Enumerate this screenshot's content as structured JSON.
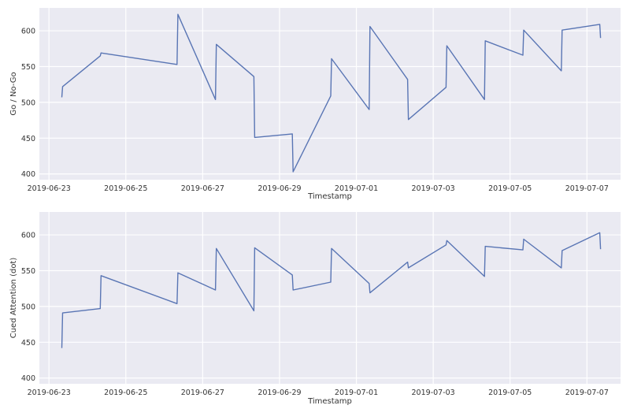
{
  "chart_data": [
    {
      "type": "line",
      "xlabel": "Timestamp",
      "ylabel": "Go / No-Go",
      "ylim": [
        392,
        632
      ],
      "xlim": [
        "2019-06-22T18:00",
        "2019-07-07T21:00"
      ],
      "yticks": [
        400,
        450,
        500,
        550,
        600
      ],
      "xticks": [
        "2019-06-23",
        "2019-06-25",
        "2019-06-27",
        "2019-06-29",
        "2019-07-01",
        "2019-07-03",
        "2019-07-05",
        "2019-07-07"
      ],
      "grid": true,
      "line_color": "#5975b4",
      "series": [
        {
          "x": [
            "2019-06-23T08:00",
            "2019-06-23T08:30",
            "2019-06-24T08:00",
            "2019-06-24T08:30",
            "2019-06-26T08:00",
            "2019-06-26T08:30",
            "2019-06-27T08:00",
            "2019-06-27T08:30",
            "2019-06-28T08:00",
            "2019-06-28T08:30",
            "2019-06-29T08:00",
            "2019-06-29T08:30",
            "2019-06-30T08:00",
            "2019-06-30T08:30",
            "2019-07-01T08:00",
            "2019-07-01T08:30",
            "2019-07-02T08:00",
            "2019-07-02T08:30",
            "2019-07-03T08:00",
            "2019-07-03T08:30",
            "2019-07-04T08:00",
            "2019-07-04T08:30",
            "2019-07-05T08:00",
            "2019-07-05T08:30",
            "2019-07-06T08:00",
            "2019-07-06T08:30",
            "2019-07-07T08:00",
            "2019-07-07T08:30"
          ],
          "values": [
            507,
            522,
            565,
            569,
            553,
            623,
            504,
            581,
            536,
            451,
            456,
            403,
            509,
            561,
            490,
            606,
            532,
            476,
            521,
            579,
            504,
            586,
            566,
            601,
            544,
            601,
            609,
            590
          ]
        }
      ]
    },
    {
      "type": "line",
      "xlabel": "Timestamp",
      "ylabel": "Cued Attention (dot)",
      "ylim": [
        392,
        632
      ],
      "xlim": [
        "2019-06-22T18:00",
        "2019-07-07T21:00"
      ],
      "yticks": [
        400,
        450,
        500,
        550,
        600
      ],
      "xticks": [
        "2019-06-23",
        "2019-06-25",
        "2019-06-27",
        "2019-06-29",
        "2019-07-01",
        "2019-07-03",
        "2019-07-05",
        "2019-07-07"
      ],
      "grid": true,
      "line_color": "#5975b4",
      "series": [
        {
          "x": [
            "2019-06-23T08:00",
            "2019-06-23T08:30",
            "2019-06-24T08:00",
            "2019-06-24T08:30",
            "2019-06-26T08:00",
            "2019-06-26T08:30",
            "2019-06-27T08:00",
            "2019-06-27T08:30",
            "2019-06-28T08:00",
            "2019-06-28T08:30",
            "2019-06-29T08:00",
            "2019-06-29T08:30",
            "2019-06-30T08:00",
            "2019-06-30T08:30",
            "2019-07-01T08:00",
            "2019-07-01T08:30",
            "2019-07-02T08:00",
            "2019-07-02T08:30",
            "2019-07-03T08:00",
            "2019-07-03T08:30",
            "2019-07-04T08:00",
            "2019-07-04T08:30",
            "2019-07-05T08:00",
            "2019-07-05T08:30",
            "2019-07-06T08:00",
            "2019-07-06T08:30",
            "2019-07-07T08:00",
            "2019-07-07T08:30"
          ],
          "values": [
            442,
            491,
            497,
            543,
            504,
            547,
            523,
            581,
            494,
            582,
            544,
            523,
            534,
            581,
            532,
            519,
            562,
            554,
            586,
            592,
            542,
            584,
            579,
            594,
            554,
            578,
            603,
            580
          ]
        }
      ]
    }
  ]
}
